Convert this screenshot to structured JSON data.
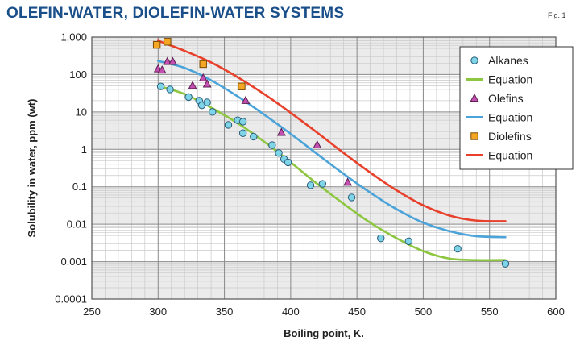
{
  "chart_data": {
    "type": "scatter",
    "title": "Olefin-water, diolefin-water systems",
    "fig_label": "Fig. 1",
    "xlabel": "Boiling point, K.",
    "ylabel": "Solubility in water, ppm (wt)",
    "xlim": [
      250,
      600
    ],
    "ylim": [
      0.0001,
      1000
    ],
    "y_scale": "log",
    "x_ticks": [
      "250",
      "300",
      "350",
      "400",
      "450",
      "500",
      "550",
      "600"
    ],
    "y_ticks": [
      "0.0001",
      "0.001",
      "0.01",
      "0.1",
      "1",
      "10",
      "100",
      "1,000"
    ],
    "grid": true,
    "legend_position": "top-right",
    "colors": {
      "alkanes_marker": "#7fd4e8",
      "alkanes_curve": "#8dc63f",
      "olefins_marker": "#c44fb0",
      "olefins_curve": "#4aa3d9",
      "diolefins_marker": "#f5a623",
      "diolefins_curve": "#e8402a"
    },
    "legend": [
      {
        "label": "Alkanes",
        "kind": "marker",
        "shape": "circle",
        "color": "#7fd4e8"
      },
      {
        "label": "Equation",
        "kind": "line",
        "color": "#8dc63f"
      },
      {
        "label": "Olefins",
        "kind": "marker",
        "shape": "triangle",
        "color": "#c44fb0"
      },
      {
        "label": "Equation",
        "kind": "line",
        "color": "#4aa3d9"
      },
      {
        "label": "Diolefins",
        "kind": "marker",
        "shape": "square",
        "color": "#f5a623"
      },
      {
        "label": "Equation",
        "kind": "line",
        "color": "#e8402a"
      }
    ],
    "series": [
      {
        "name": "Alkanes",
        "shape": "circle",
        "color": "#7fd4e8",
        "x": [
          302,
          309,
          323,
          331,
          333,
          337,
          341,
          353,
          360,
          364,
          364,
          372,
          386,
          391,
          395,
          398,
          415,
          424,
          446,
          468,
          489,
          526,
          562
        ],
        "y": [
          48,
          40,
          25,
          20,
          15,
          18,
          10,
          4.5,
          6,
          5.5,
          2.7,
          2.2,
          1.3,
          0.8,
          0.55,
          0.45,
          0.11,
          0.12,
          0.052,
          0.0042,
          0.0035,
          0.0022,
          0.00088
        ]
      },
      {
        "name": "Olefins",
        "shape": "triangle",
        "color": "#c44fb0",
        "x": [
          300,
          303,
          307,
          311,
          326,
          334,
          337,
          366,
          393,
          420,
          443
        ],
        "y": [
          140,
          130,
          220,
          220,
          50,
          80,
          55,
          20,
          2.8,
          1.3,
          0.13
        ]
      },
      {
        "name": "Diolefins",
        "shape": "square",
        "color": "#f5a623",
        "x": [
          299,
          307,
          334,
          363
        ],
        "y": [
          620,
          750,
          190,
          48
        ]
      }
    ],
    "curves": [
      {
        "name": "Equation",
        "color": "#8dc63f",
        "x": [
          300,
          320,
          340,
          360,
          380,
          400,
          420,
          440,
          460,
          480,
          500,
          520,
          540,
          562
        ],
        "y": [
          50,
          30,
          13,
          5,
          1.6,
          0.45,
          0.12,
          0.035,
          0.011,
          0.0042,
          0.0019,
          0.0012,
          0.0011,
          0.0011
        ]
      },
      {
        "name": "Equation",
        "color": "#4aa3d9",
        "x": [
          300,
          320,
          340,
          360,
          380,
          400,
          420,
          440,
          460,
          480,
          500,
          520,
          540,
          562
        ],
        "y": [
          230,
          150,
          70,
          26,
          8.5,
          2.6,
          0.75,
          0.22,
          0.07,
          0.025,
          0.011,
          0.0065,
          0.0048,
          0.0045
        ]
      },
      {
        "name": "Equation",
        "color": "#e8402a",
        "x": [
          300,
          320,
          340,
          360,
          380,
          400,
          420,
          440,
          460,
          480,
          500,
          520,
          540,
          562
        ],
        "y": [
          800,
          430,
          210,
          85,
          30,
          9.5,
          2.8,
          0.8,
          0.24,
          0.08,
          0.032,
          0.017,
          0.0125,
          0.012
        ]
      }
    ]
  }
}
